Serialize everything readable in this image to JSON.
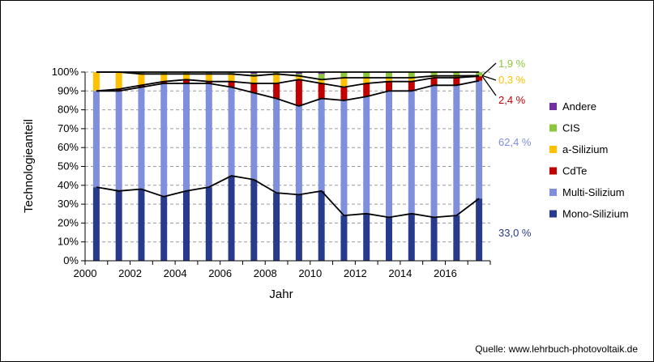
{
  "chart_data": {
    "type": "bar",
    "stacked": true,
    "percent": true,
    "xlabel": "Jahr",
    "ylabel": "Technologieanteil",
    "ylim": [
      0,
      100
    ],
    "yticks": [
      "0%",
      "10%",
      "20%",
      "30%",
      "40%",
      "50%",
      "60%",
      "70%",
      "80%",
      "90%",
      "100%"
    ],
    "xtick_labels": [
      "2000",
      "2002",
      "2004",
      "2006",
      "2008",
      "2010",
      "2012",
      "2014",
      "2016"
    ],
    "categories": [
      "2000",
      "2001",
      "2002",
      "2003",
      "2004",
      "2005",
      "2006",
      "2007",
      "2008",
      "2009",
      "2010",
      "2011",
      "2012",
      "2013",
      "2014",
      "2015",
      "2016",
      "2017"
    ],
    "grid": "horizontal-dashed",
    "legend_placement": "right",
    "series": [
      {
        "name": "Mono-Silizium",
        "color": "#283a8c",
        "values": [
          39,
          37,
          38,
          34,
          37,
          39,
          45,
          43,
          36,
          35,
          37,
          24,
          25,
          23,
          25,
          23,
          24,
          33
        ]
      },
      {
        "name": "Multi-Silizium",
        "color": "#7f8fdc",
        "values": [
          51,
          53,
          54,
          60,
          57,
          55,
          47,
          46,
          50,
          47,
          49,
          61,
          62,
          67,
          65,
          70,
          69,
          62.4
        ]
      },
      {
        "name": "CdTe",
        "color": "#c00000",
        "values": [
          0,
          1,
          1,
          1,
          2,
          1,
          3,
          5,
          8,
          14,
          8,
          7,
          7,
          5,
          5,
          4,
          4,
          2.4
        ]
      },
      {
        "name": "a-Silizium",
        "color": "#ffc000",
        "values": [
          10,
          9,
          6,
          4,
          3,
          4,
          4,
          4,
          5,
          2,
          2,
          5,
          3,
          2,
          2,
          1,
          1,
          0.3
        ]
      },
      {
        "name": "CIS",
        "color": "#8cc63f",
        "values": [
          0,
          0,
          1,
          1,
          1,
          1,
          1,
          1,
          1,
          1,
          3,
          3,
          3,
          3,
          3,
          2,
          2,
          1.9
        ]
      },
      {
        "name": "Andere",
        "color": "#7030a0",
        "values": [
          0,
          0,
          0,
          0,
          0,
          0,
          0,
          1,
          0,
          1,
          1,
          0,
          0,
          0,
          0,
          0,
          0,
          0
        ]
      }
    ],
    "annotations": [
      {
        "text": "1,9 %",
        "series": "CIS",
        "color": "#8cc63f"
      },
      {
        "text": "0,3 %",
        "series": "a-Silizium",
        "color": "#ffc000"
      },
      {
        "text": "2,4 %",
        "series": "CdTe",
        "color": "#c00000"
      },
      {
        "text": "62,4 %",
        "series": "Multi-Silizium",
        "color": "#7f8fdc"
      },
      {
        "text": "33,0 %",
        "series": "Mono-Silizium",
        "color": "#283a8c"
      }
    ]
  },
  "source": "Quelle: www.lehrbuch-photovoltaik.de"
}
